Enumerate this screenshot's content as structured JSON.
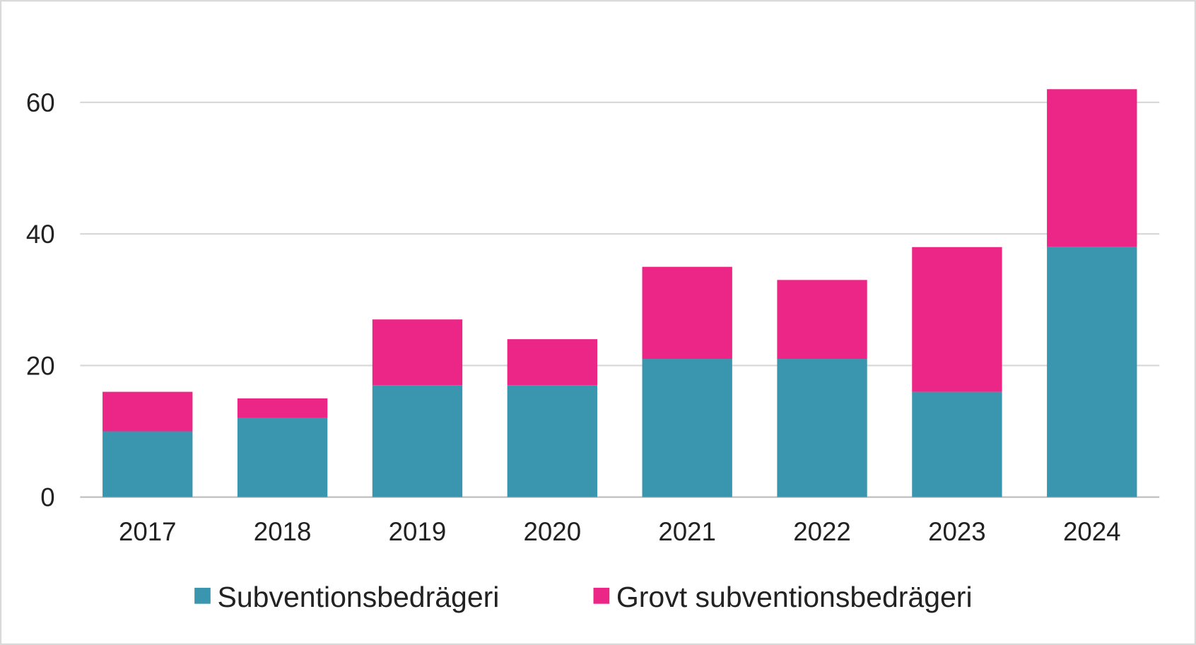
{
  "chart_data": {
    "type": "bar",
    "stacked": true,
    "title": "",
    "xlabel": "",
    "ylabel": "",
    "categories": [
      "2017",
      "2018",
      "2019",
      "2020",
      "2021",
      "2022",
      "2023",
      "2024"
    ],
    "series": [
      {
        "name": "Subventionsbedrägeri",
        "color": "#3A96AF",
        "values": [
          10,
          12,
          17,
          17,
          21,
          21,
          16,
          38
        ]
      },
      {
        "name": "Grovt subventionsbedrägeri",
        "color": "#EC2686",
        "values": [
          6,
          3,
          10,
          7,
          14,
          12,
          22,
          24
        ]
      }
    ],
    "ylim": [
      0,
      70
    ],
    "yticks": [
      0,
      20,
      40,
      60
    ],
    "grid": true,
    "legend_position": "bottom"
  }
}
